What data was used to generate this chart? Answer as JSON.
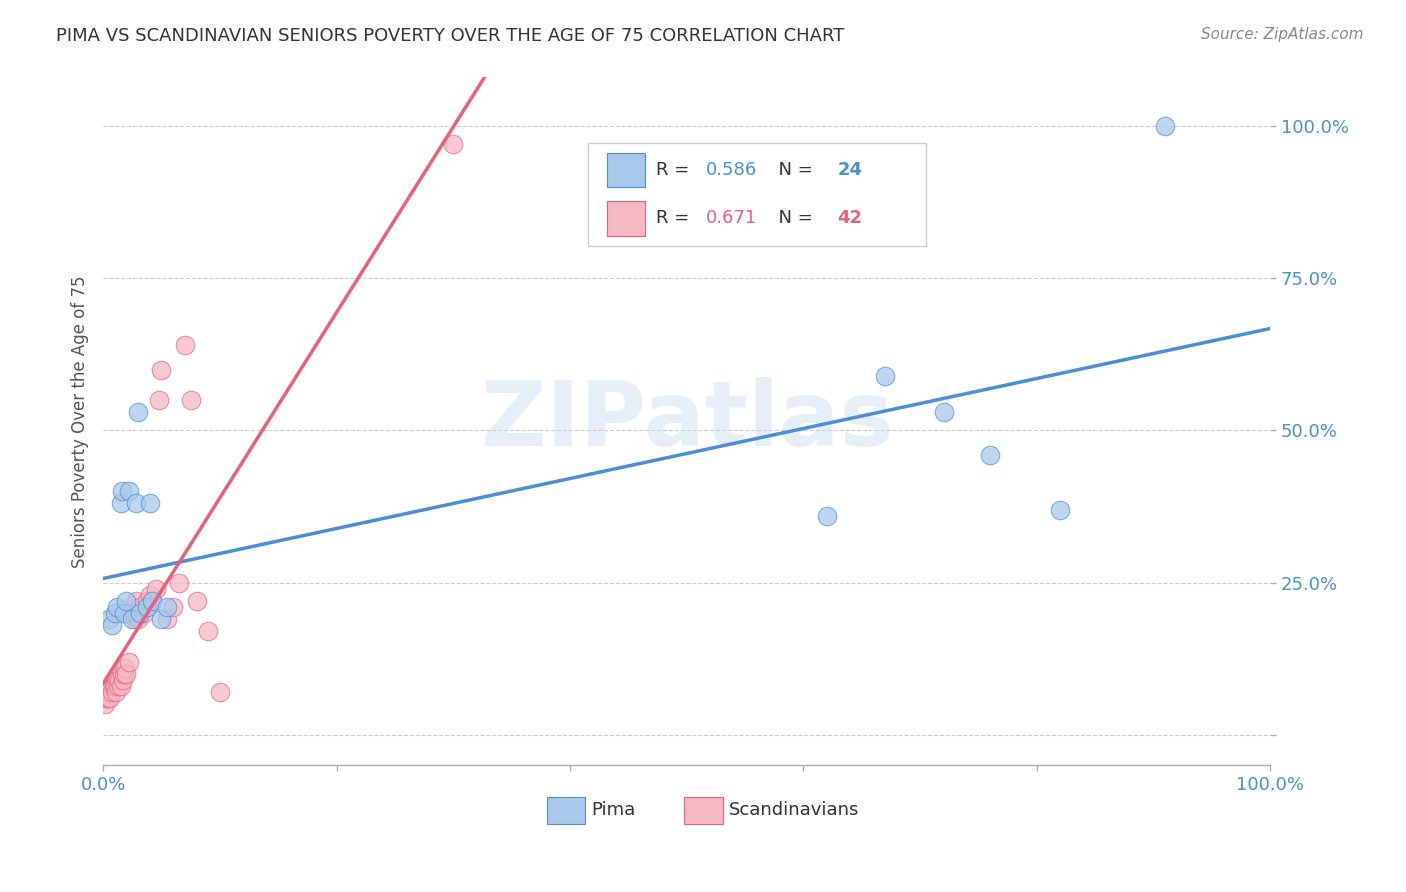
{
  "title": "PIMA VS SCANDINAVIAN SENIORS POVERTY OVER THE AGE OF 75 CORRELATION CHART",
  "source": "Source: ZipAtlas.com",
  "ylabel": "Seniors Poverty Over the Age of 75",
  "watermark": "ZIPatlas",
  "pima_color": "#A8C8EC",
  "scand_color": "#F5B8C4",
  "pima_line_color": "#4A8FD4",
  "scand_line_color": "#E8607A",
  "pima_R": 0.586,
  "pima_N": 24,
  "scand_R": 0.671,
  "scand_N": 42,
  "pima_x": [
    0.005,
    0.008,
    0.01,
    0.012,
    0.015,
    0.016,
    0.018,
    0.02,
    0.022,
    0.025,
    0.028,
    0.03,
    0.032,
    0.038,
    0.04,
    0.042,
    0.05,
    0.055,
    0.62,
    0.67,
    0.72,
    0.76,
    0.82,
    0.91
  ],
  "pima_y": [
    0.19,
    0.18,
    0.2,
    0.21,
    0.38,
    0.4,
    0.2,
    0.22,
    0.4,
    0.19,
    0.38,
    0.53,
    0.2,
    0.21,
    0.38,
    0.22,
    0.19,
    0.21,
    0.36,
    0.59,
    0.53,
    0.46,
    0.37,
    1.0
  ],
  "scand_x": [
    0.002,
    0.003,
    0.004,
    0.005,
    0.006,
    0.007,
    0.008,
    0.009,
    0.01,
    0.011,
    0.012,
    0.013,
    0.014,
    0.015,
    0.016,
    0.017,
    0.018,
    0.019,
    0.02,
    0.022,
    0.023,
    0.025,
    0.027,
    0.028,
    0.03,
    0.032,
    0.035,
    0.038,
    0.04,
    0.042,
    0.045,
    0.048,
    0.05,
    0.055,
    0.06,
    0.065,
    0.07,
    0.075,
    0.08,
    0.09,
    0.1,
    0.3
  ],
  "scand_y": [
    0.05,
    0.06,
    0.06,
    0.07,
    0.06,
    0.08,
    0.07,
    0.08,
    0.08,
    0.07,
    0.09,
    0.08,
    0.09,
    0.08,
    0.1,
    0.09,
    0.1,
    0.11,
    0.1,
    0.12,
    0.2,
    0.2,
    0.19,
    0.22,
    0.19,
    0.21,
    0.2,
    0.22,
    0.23,
    0.22,
    0.24,
    0.55,
    0.6,
    0.19,
    0.21,
    0.25,
    0.64,
    0.55,
    0.22,
    0.17,
    0.07,
    0.97
  ],
  "xlim": [
    0.0,
    1.0
  ],
  "ylim": [
    -0.05,
    1.08
  ],
  "background_color": "#FFFFFF",
  "grid_color": "#CCCCCC",
  "title_color": "#333333",
  "axis_label_color": "#555555",
  "tick_color": "#4A8FD4",
  "legend_entry_1": "R = 0.586   N = 24",
  "legend_entry_2": "R = 0.671   N = 42",
  "legend_label_1": "Pima",
  "legend_label_2": "Scandinavians"
}
